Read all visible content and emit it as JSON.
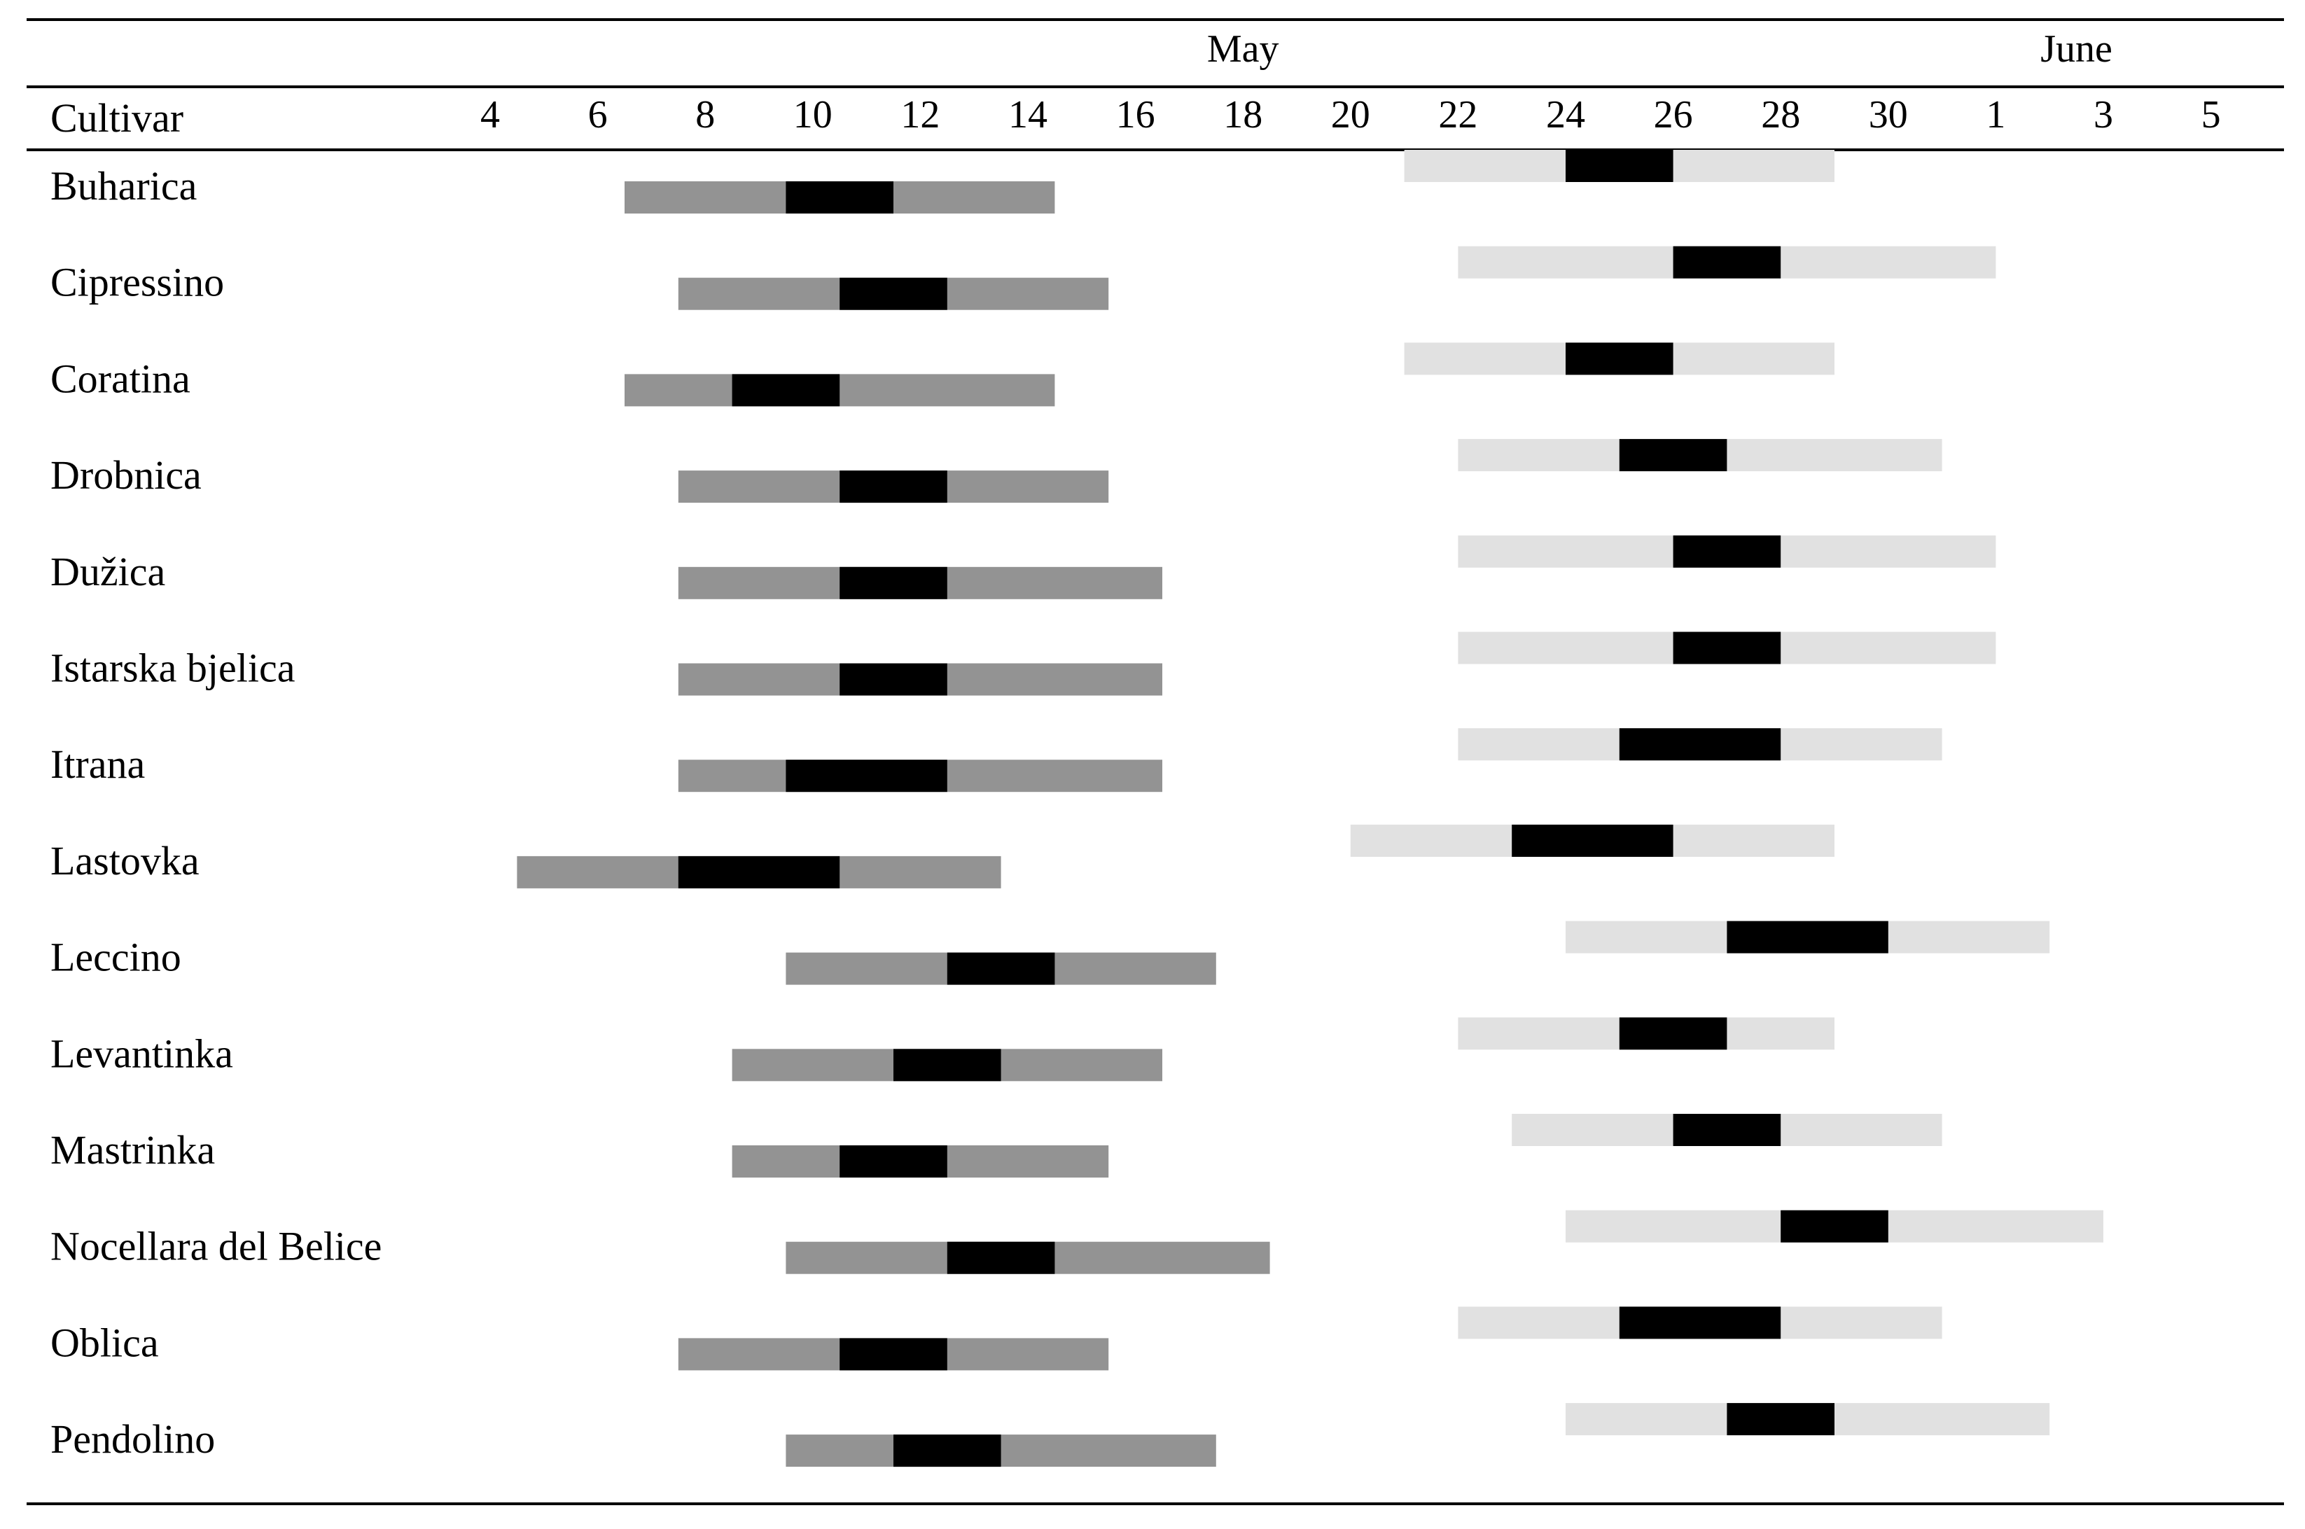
{
  "chart_data": {
    "type": "table",
    "header": {
      "row_label": "Cultivar"
    },
    "months": [
      {
        "label": "May",
        "axis_day": 18
      },
      {
        "label": "June",
        "axis_day": 33.5
      }
    ],
    "x_ticks": [
      {
        "axis_day": 4,
        "label": "4"
      },
      {
        "axis_day": 6,
        "label": "6"
      },
      {
        "axis_day": 8,
        "label": "8"
      },
      {
        "axis_day": 10,
        "label": "10"
      },
      {
        "axis_day": 12,
        "label": "12"
      },
      {
        "axis_day": 14,
        "label": "14"
      },
      {
        "axis_day": 16,
        "label": "16"
      },
      {
        "axis_day": 18,
        "label": "18"
      },
      {
        "axis_day": 20,
        "label": "20"
      },
      {
        "axis_day": 22,
        "label": "22"
      },
      {
        "axis_day": 24,
        "label": "24"
      },
      {
        "axis_day": 26,
        "label": "26"
      },
      {
        "axis_day": 28,
        "label": "28"
      },
      {
        "axis_day": 30,
        "label": "30"
      },
      {
        "axis_day": 32,
        "label": "1"
      },
      {
        "axis_day": 34,
        "label": "3"
      },
      {
        "axis_day": 36,
        "label": "5"
      }
    ],
    "x_range": [
      4,
      36
    ],
    "colors": {
      "phase1": "#939393",
      "phase2": "#e1e1e1",
      "peak": "#000000"
    },
    "rows": [
      {
        "cultivar": "Buharica",
        "phase1": {
          "start": 6.5,
          "peak_start": 9.5,
          "peak_end": 11.5,
          "end": 14.5
        },
        "phase2": {
          "start": 21,
          "peak_start": 24,
          "peak_end": 26,
          "end": 29
        }
      },
      {
        "cultivar": "Cipressino",
        "phase1": {
          "start": 7.5,
          "peak_start": 10.5,
          "peak_end": 12.5,
          "end": 15.5
        },
        "phase2": {
          "start": 22,
          "peak_start": 26,
          "peak_end": 28,
          "end": 32
        }
      },
      {
        "cultivar": "Coratina",
        "phase1": {
          "start": 6.5,
          "peak_start": 8.5,
          "peak_end": 10.5,
          "end": 14.5
        },
        "phase2": {
          "start": 21,
          "peak_start": 24,
          "peak_end": 26,
          "end": 29
        }
      },
      {
        "cultivar": "Drobnica",
        "phase1": {
          "start": 7.5,
          "peak_start": 10.5,
          "peak_end": 12.5,
          "end": 15.5
        },
        "phase2": {
          "start": 22,
          "peak_start": 25,
          "peak_end": 27,
          "end": 31
        }
      },
      {
        "cultivar": "Dužica",
        "phase1": {
          "start": 7.5,
          "peak_start": 10.5,
          "peak_end": 12.5,
          "end": 16.5
        },
        "phase2": {
          "start": 22,
          "peak_start": 26,
          "peak_end": 28,
          "end": 32
        }
      },
      {
        "cultivar": "Istarska bjelica",
        "phase1": {
          "start": 7.5,
          "peak_start": 10.5,
          "peak_end": 12.5,
          "end": 16.5
        },
        "phase2": {
          "start": 22,
          "peak_start": 26,
          "peak_end": 28,
          "end": 32
        }
      },
      {
        "cultivar": "Itrana",
        "phase1": {
          "start": 7.5,
          "peak_start": 9.5,
          "peak_end": 12.5,
          "end": 16.5
        },
        "phase2": {
          "start": 22,
          "peak_start": 25,
          "peak_end": 28,
          "end": 31
        }
      },
      {
        "cultivar": "Lastovka",
        "phase1": {
          "start": 4.5,
          "peak_start": 7.5,
          "peak_end": 10.5,
          "end": 13.5
        },
        "phase2": {
          "start": 20,
          "peak_start": 23,
          "peak_end": 26,
          "end": 29
        }
      },
      {
        "cultivar": "Leccino",
        "phase1": {
          "start": 9.5,
          "peak_start": 12.5,
          "peak_end": 14.5,
          "end": 17.5
        },
        "phase2": {
          "start": 24,
          "peak_start": 27,
          "peak_end": 30,
          "end": 33
        }
      },
      {
        "cultivar": "Levantinka",
        "phase1": {
          "start": 8.5,
          "peak_start": 11.5,
          "peak_end": 13.5,
          "end": 16.5
        },
        "phase2": {
          "start": 22,
          "peak_start": 25,
          "peak_end": 27,
          "end": 29
        }
      },
      {
        "cultivar": "Mastrinka",
        "phase1": {
          "start": 8.5,
          "peak_start": 10.5,
          "peak_end": 12.5,
          "end": 15.5
        },
        "phase2": {
          "start": 23,
          "peak_start": 26,
          "peak_end": 28,
          "end": 31
        }
      },
      {
        "cultivar": "Nocellara del Belice",
        "phase1": {
          "start": 9.5,
          "peak_start": 12.5,
          "peak_end": 14.5,
          "end": 18.5
        },
        "phase2": {
          "start": 24,
          "peak_start": 28,
          "peak_end": 30,
          "end": 34
        }
      },
      {
        "cultivar": "Oblica",
        "phase1": {
          "start": 7.5,
          "peak_start": 10.5,
          "peak_end": 12.5,
          "end": 15.5
        },
        "phase2": {
          "start": 22,
          "peak_start": 25,
          "peak_end": 28,
          "end": 31
        }
      },
      {
        "cultivar": "Pendolino",
        "phase1": {
          "start": 9.5,
          "peak_start": 11.5,
          "peak_end": 13.5,
          "end": 17.5
        },
        "phase2": {
          "start": 24,
          "peak_start": 27,
          "peak_end": 29,
          "end": 33
        }
      }
    ]
  }
}
